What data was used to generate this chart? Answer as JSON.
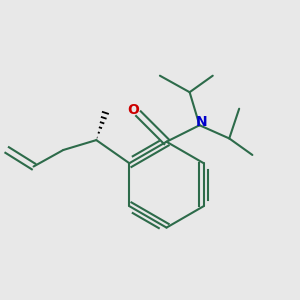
{
  "bg_color": "#e8e8e8",
  "bond_color": "#2d6b4a",
  "o_color": "#cc0000",
  "n_color": "#0000cc",
  "bond_width": 1.5,
  "fig_width": 3.0,
  "fig_height": 3.0,
  "dpi": 100
}
